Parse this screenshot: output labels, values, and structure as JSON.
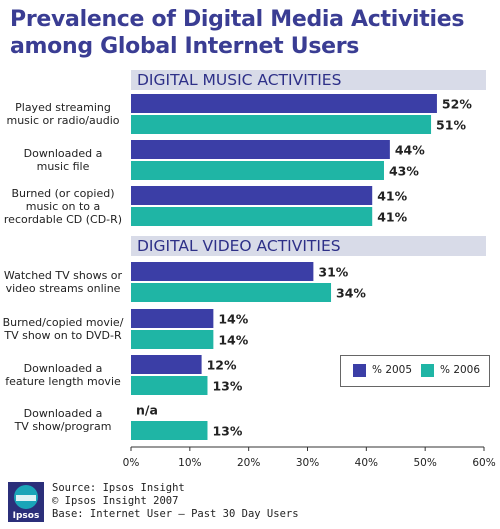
{
  "title_lines": [
    "Prevalence of Digital Media Activities",
    "among Global Internet Users"
  ],
  "colors": {
    "title": "#3a3d93",
    "series_2005": "#3b3ea6",
    "series_2006": "#1fb5a5",
    "section_rule": "#d8dbe8"
  },
  "chart_data": {
    "type": "bar",
    "orientation": "horizontal",
    "title": "Prevalence of Digital Media Activities among Global Internet Users",
    "xlim": [
      0,
      60
    ],
    "x_ticks": [
      "0%",
      "10%",
      "20%",
      "30%",
      "40%",
      "50%",
      "60%"
    ],
    "grid": false,
    "legend_position": "bottom-right",
    "sections": [
      {
        "title": "DIGITAL MUSIC ACTIVITIES",
        "categories": [
          {
            "label": "Played streaming\nmusic or radio/audio",
            "values": [
              52,
              51
            ],
            "labels": [
              "52%",
              "51%"
            ]
          },
          {
            "label": "Downloaded a\nmusic file",
            "values": [
              44,
              43
            ],
            "labels": [
              "44%",
              "43%"
            ]
          },
          {
            "label": "Burned (or copied)\nmusic on to a\nrecordable CD (CD-R)",
            "values": [
              41,
              41
            ],
            "labels": [
              "41%",
              "41%"
            ]
          }
        ]
      },
      {
        "title": "DIGITAL VIDEO ACTIVITIES",
        "categories": [
          {
            "label": "Watched TV shows or\nvideo streams online",
            "values": [
              31,
              34
            ],
            "labels": [
              "31%",
              "34%"
            ]
          },
          {
            "label": "Burned/copied movie/\nTV show on to DVD-R",
            "values": [
              14,
              14
            ],
            "labels": [
              "14%",
              "14%"
            ]
          },
          {
            "label": "Downloaded a\nfeature length movie",
            "values": [
              12,
              13
            ],
            "labels": [
              "12%",
              "13%"
            ]
          },
          {
            "label": "Downloaded a\nTV show/program",
            "values": [
              null,
              13
            ],
            "labels": [
              "n/a",
              "13%"
            ]
          }
        ]
      }
    ],
    "series": [
      {
        "name": "% 2005"
      },
      {
        "name": "% 2006"
      }
    ]
  },
  "footer": {
    "logo_text": "Ipsos",
    "source_lines": [
      "Source: Ipsos Insight",
      "© Ipsos Insight 2007",
      "Base: Internet User – Past 30 Day Users"
    ]
  }
}
